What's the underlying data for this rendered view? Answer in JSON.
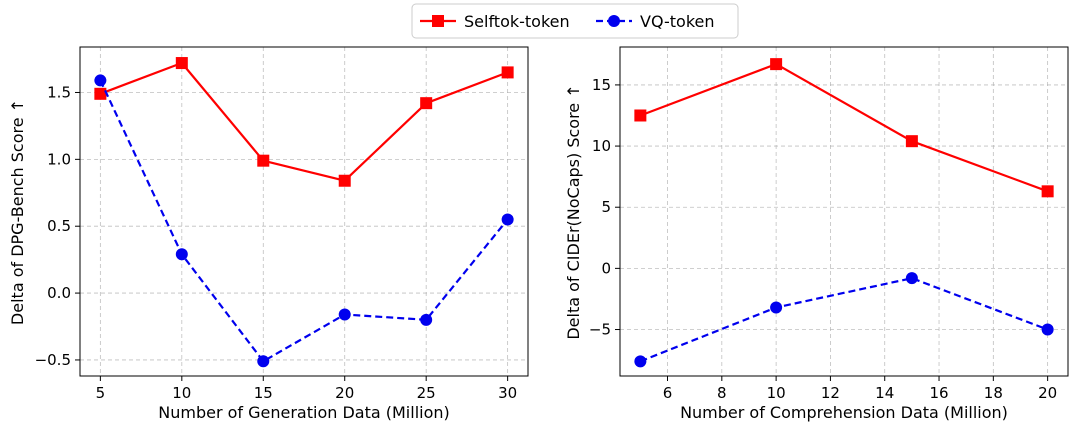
{
  "legend": {
    "entries": [
      {
        "label": "Selftok-token",
        "color": "#ff0000",
        "marker": "square",
        "dash": "solid"
      },
      {
        "label": "VQ-token",
        "color": "#0000ee",
        "marker": "circle",
        "dash": "dashed"
      }
    ],
    "position": "top-center"
  },
  "chart_data": [
    {
      "type": "line",
      "xlabel": "Number of Generation Data (Million)",
      "ylabel": "Delta of DPG-Bench Score ↑",
      "x": [
        5,
        10,
        15,
        20,
        25,
        30
      ],
      "xlim": [
        3.75,
        31.25
      ],
      "ylim": [
        -0.62,
        1.84
      ],
      "xticks": [
        5,
        10,
        15,
        20,
        25,
        30
      ],
      "yticks": [
        -0.5,
        0.0,
        0.5,
        1.0,
        1.5
      ],
      "ytick_labels": [
        "−0.5",
        "0.0",
        "0.5",
        "1.0",
        "1.5"
      ],
      "grid": true,
      "series": [
        {
          "name": "Selftok-token",
          "values": [
            1.49,
            1.72,
            0.99,
            0.84,
            1.42,
            1.65
          ]
        },
        {
          "name": "VQ-token",
          "values": [
            1.59,
            0.29,
            -0.51,
            -0.16,
            -0.2,
            0.55
          ]
        }
      ]
    },
    {
      "type": "line",
      "xlabel": "Number of Comprehension Data (Million)",
      "ylabel": "Delta of CIDEr(NoCaps) Score ↑",
      "x": [
        5,
        10,
        15,
        20
      ],
      "xlim": [
        4.25,
        20.75
      ],
      "ylim": [
        -8.8,
        18.1
      ],
      "xticks": [
        6,
        8,
        10,
        12,
        14,
        16,
        18,
        20
      ],
      "yticks": [
        -5,
        0,
        5,
        10,
        15
      ],
      "ytick_labels": [
        "−5",
        "0",
        "5",
        "10",
        "15"
      ],
      "grid": true,
      "series": [
        {
          "name": "Selftok-token",
          "values": [
            12.5,
            16.7,
            10.4,
            6.3
          ]
        },
        {
          "name": "VQ-token",
          "values": [
            -7.6,
            -3.2,
            -0.8,
            -5.0
          ]
        }
      ]
    }
  ]
}
